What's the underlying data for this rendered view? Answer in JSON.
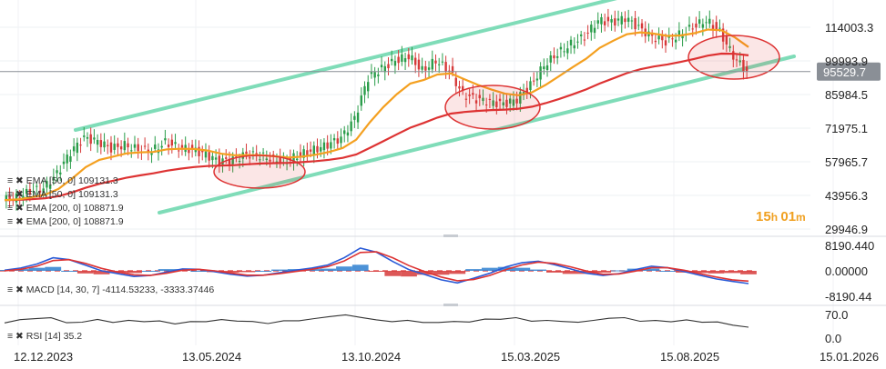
{
  "chart_data": [
    {
      "type": "candlestick",
      "price_axis_ticks": [
        "114003.3",
        "99993.9",
        "85984.5",
        "71975.1",
        "57965.7",
        "43956.3",
        "29946.9"
      ],
      "price_axis_values": [
        114003.3,
        99993.9,
        85984.5,
        71975.1,
        57965.7,
        43956.3,
        29946.9
      ],
      "last_price_label": "95529.7",
      "last_price": 95529.7,
      "countdown": {
        "hours": "15",
        "h": "h",
        "minutes": "01",
        "m": "m"
      },
      "x_tick_labels": [
        "12.12.2023",
        "13.05.2024",
        "13.10.2024",
        "15.03.2025",
        "15.08.2025",
        "15.01.2026"
      ],
      "indicators": [
        {
          "label": "EMA [50, 0] 109131.3",
          "color": "#f4a020"
        },
        {
          "label": "EMA [50, 0] 109131.3",
          "color": "#f4a020"
        },
        {
          "label": "EMA [200, 0] 108871.9",
          "color": "#dd3333"
        },
        {
          "label": "EMA [200, 0] 108871.9",
          "color": "#dd3333"
        }
      ],
      "channel_color": "#7fdcb8",
      "ellipse_color": "#dd3333",
      "approx_closes": [
        42000,
        43000,
        45500,
        47000,
        53000,
        62000,
        68000,
        66500,
        63500,
        65000,
        63000,
        62500,
        66000,
        64000,
        63000,
        61000,
        58000,
        59000,
        61000,
        60500,
        59000,
        58500,
        61000,
        63000,
        65000,
        68000,
        76000,
        93000,
        97000,
        100000,
        102000,
        96000,
        100000,
        96000,
        86000,
        84000,
        83000,
        82000,
        84000,
        90000,
        98000,
        103000,
        107000,
        110000,
        117000,
        116000,
        118000,
        114000,
        110000,
        108000,
        111000,
        114000,
        117000,
        112000,
        102000,
        95500
      ]
    },
    {
      "type": "line",
      "title": "MACD [14, 30, 7] -4114.53233, -3333.37446",
      "ylim": [
        -8190.44,
        8190.44
      ],
      "y_tick_labels": [
        "8190.440",
        "0.00000",
        "-8190.44"
      ],
      "series": [
        {
          "name": "MACD",
          "color": "#2a5bd7",
          "values": [
            200,
            900,
            2200,
            4200,
            3600,
            1800,
            0,
            -900,
            -1800,
            -1500,
            -400,
            600,
            500,
            -300,
            -1100,
            -1700,
            -1400,
            -600,
            200,
            900,
            1900,
            4200,
            7300,
            6000,
            3000,
            400,
            -1200,
            -2900,
            -3900,
            -2400,
            -800,
            1300,
            2600,
            3100,
            2000,
            600,
            -800,
            -1500,
            -900,
            400,
            1500,
            1000,
            -200,
            -1400,
            -2600,
            -3400,
            -4100
          ]
        },
        {
          "name": "Signal",
          "color": "#dd3333",
          "values": [
            0,
            500,
            1500,
            3300,
            3600,
            2400,
            800,
            -400,
            -1300,
            -1500,
            -800,
            200,
            500,
            0,
            -700,
            -1400,
            -1400,
            -900,
            -200,
            500,
            1400,
            3200,
            5900,
            6100,
            4200,
            1700,
            -300,
            -2000,
            -3200,
            -2800,
            -1500,
            400,
            1900,
            2800,
            2400,
            1300,
            -100,
            -1100,
            -1000,
            -100,
            1000,
            1000,
            200,
            -900,
            -2000,
            -2900,
            -3300
          ]
        }
      ]
    },
    {
      "type": "line",
      "title": "RSI [14] 35.2",
      "ylim": [
        0,
        100
      ],
      "y_tick_labels": [
        "70.0",
        "0.0"
      ],
      "series": [
        {
          "name": "RSI",
          "color": "#333333",
          "values": [
            45,
            52,
            55,
            60,
            48,
            50,
            56,
            44,
            50,
            48,
            53,
            45,
            50,
            47,
            52,
            49,
            51,
            46,
            53,
            50,
            55,
            62,
            70,
            64,
            56,
            48,
            50,
            44,
            47,
            52,
            50,
            56,
            53,
            58,
            50,
            55,
            52,
            47,
            50,
            56,
            60,
            52,
            55,
            49,
            52,
            44,
            47,
            40,
            35.2
          ]
        }
      ]
    }
  ]
}
